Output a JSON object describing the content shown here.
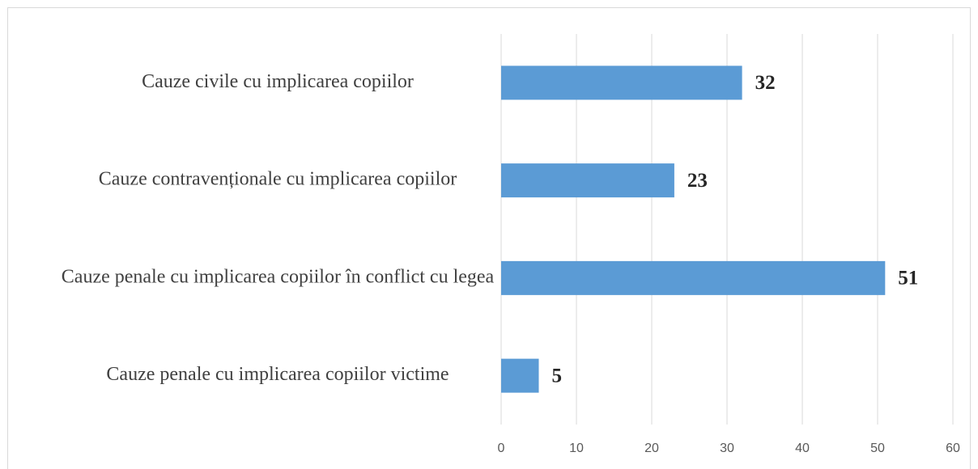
{
  "chart_data": {
    "type": "bar",
    "orientation": "horizontal",
    "categories": [
      "Cauze civile cu implicarea copiilor",
      "Cauze contravenționale cu implicarea copiilor",
      "Cauze penale cu implicarea copiilor în conflict cu legea",
      "Cauze penale cu implicarea copiilor victime"
    ],
    "values": [
      32,
      23,
      51,
      5
    ],
    "color": "#5b9bd5",
    "xlim": [
      0,
      60
    ],
    "xticks": [
      0,
      10,
      20,
      30,
      40,
      50,
      60
    ],
    "grid": true
  }
}
